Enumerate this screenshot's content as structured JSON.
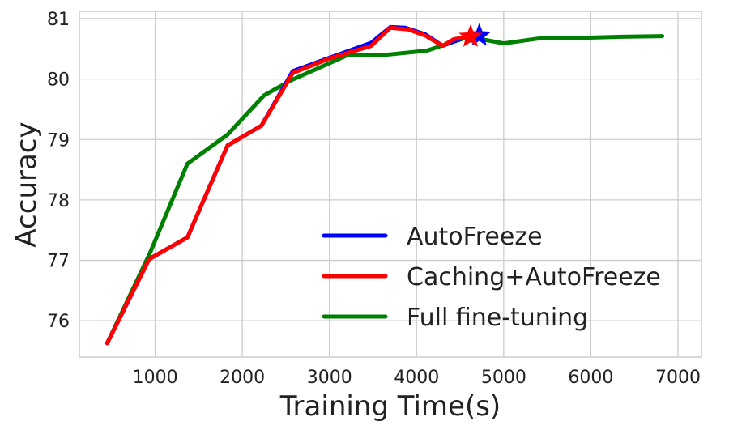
{
  "chart_data": {
    "type": "line",
    "title": "",
    "xlabel": "Training Time(s)",
    "ylabel": "Accuracy",
    "xlim": [
      130,
      7270
    ],
    "ylim": [
      75.4,
      81.12
    ],
    "x_ticks": [
      1000,
      2000,
      3000,
      4000,
      5000,
      6000,
      7000
    ],
    "y_ticks": [
      76,
      77,
      78,
      79,
      80,
      81
    ],
    "grid": true,
    "legend_position": "bottom-right",
    "series": [
      {
        "name": "AutoFreeze",
        "color": "#0000ff",
        "x": [
          450,
          930,
          1370,
          1830,
          2220,
          2580,
          2940,
          3480,
          3700,
          3870,
          4100,
          4300,
          4600,
          4720
        ],
        "y": [
          75.63,
          77.02,
          77.38,
          78.9,
          79.23,
          80.13,
          80.32,
          80.6,
          80.86,
          80.85,
          80.74,
          80.55,
          80.72,
          80.72
        ],
        "end_marker": {
          "x": 4720,
          "y": 80.72,
          "shape": "star"
        }
      },
      {
        "name": "Caching+AutoFreeze",
        "color": "#ff0000",
        "x": [
          450,
          930,
          1370,
          1830,
          2220,
          2580,
          3000,
          3480,
          3700,
          3910,
          4100,
          4300,
          4430,
          4620
        ],
        "y": [
          75.63,
          77.02,
          77.38,
          78.9,
          79.23,
          80.1,
          80.34,
          80.55,
          80.85,
          80.82,
          80.72,
          80.55,
          80.66,
          80.7
        ],
        "end_marker": {
          "x": 4620,
          "y": 80.7,
          "shape": "star"
        }
      },
      {
        "name": "Full fine-tuning",
        "color": "#008000",
        "x": [
          450,
          940,
          1370,
          1830,
          2250,
          2560,
          3200,
          3650,
          4120,
          4600,
          5000,
          5450,
          5900,
          6350,
          6820
        ],
        "y": [
          75.63,
          77.12,
          78.6,
          79.08,
          79.73,
          79.98,
          80.39,
          80.4,
          80.47,
          80.7,
          80.59,
          80.68,
          80.68,
          80.7,
          80.71
        ]
      }
    ]
  }
}
